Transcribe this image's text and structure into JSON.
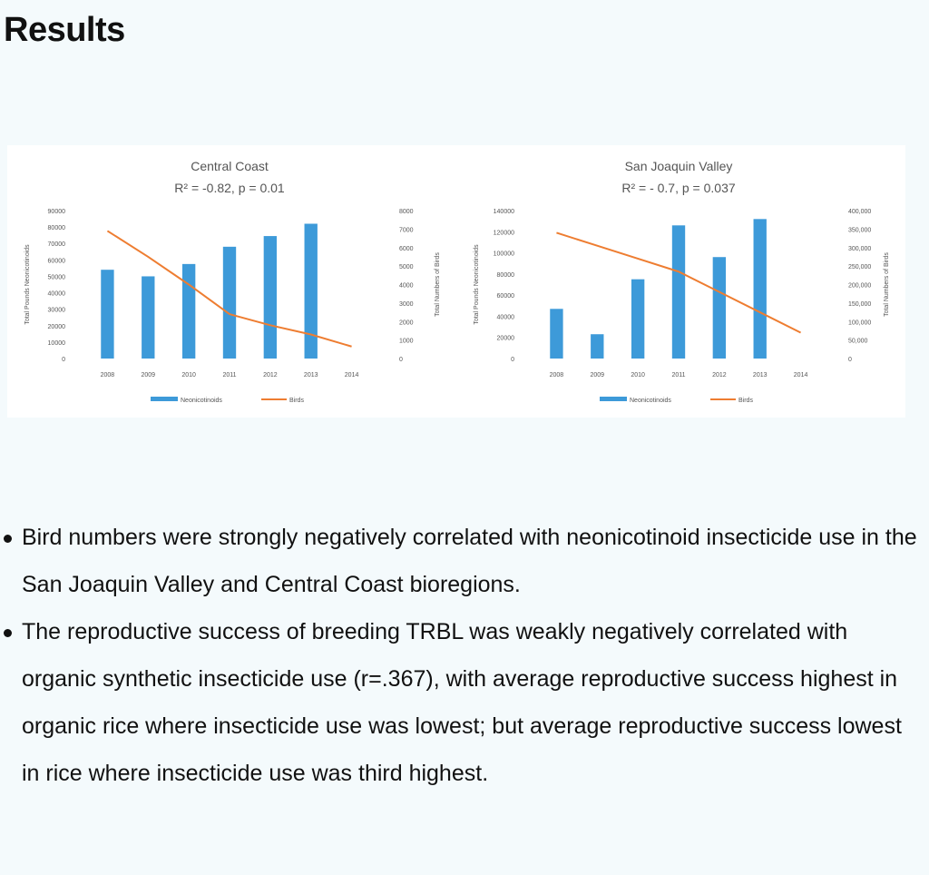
{
  "slide": {
    "title": "Results",
    "bullets": [
      "Bird numbers were strongly negatively correlated with neonicotinoid insecticide use in the San Joaquin Valley and Central Coast bioregions.",
      "The reproductive success of breeding TRBL was weakly negatively correlated with organic synthetic insecticide use (r=.367), with average reproductive success highest in organic rice where insecticide use was lowest; but average reproductive success lowest in rice where insecticide use was third highest."
    ]
  },
  "colors": {
    "bars": "#3d9ad9",
    "line": "#ee7d31",
    "axis_text": "#555555"
  },
  "chart_data": [
    {
      "type": "bar",
      "title": "Central Coast",
      "subtitle": "R² = -0.82, p = 0.01",
      "categories": [
        "2008",
        "2009",
        "2010",
        "2011",
        "2012",
        "2013",
        "2014"
      ],
      "series": [
        {
          "name": "Neonicotinoids",
          "type": "bar",
          "axis": "left",
          "values": [
            54000,
            50000,
            57500,
            68000,
            74500,
            82000,
            0
          ]
        },
        {
          "name": "Birds",
          "type": "line",
          "axis": "right",
          "values": [
            6900,
            5500,
            4000,
            2400,
            1800,
            1300,
            650
          ]
        }
      ],
      "ylabel": "Total Pounds Neonicotinoids",
      "y2label": "Total Numbers of Birds",
      "ylim": [
        0,
        90000
      ],
      "y2lim": [
        0,
        8000
      ],
      "yticks": [
        "0",
        "10000",
        "20000",
        "30000",
        "40000",
        "50000",
        "60000",
        "70000",
        "80000",
        "90000"
      ],
      "y2ticks": [
        "0",
        "1000",
        "2000",
        "3000",
        "4000",
        "5000",
        "6000",
        "7000",
        "8000"
      ],
      "legend": [
        "Neonicotinoids",
        "Birds"
      ]
    },
    {
      "type": "bar",
      "title": "San Joaquin Valley",
      "subtitle": "R² = - 0.7, p = 0.037",
      "categories": [
        "2008",
        "2009",
        "2010",
        "2011",
        "2012",
        "2013",
        "2014"
      ],
      "series": [
        {
          "name": "Neonicotinoids",
          "type": "bar",
          "axis": "left",
          "values": [
            47000,
            23000,
            75000,
            126000,
            96000,
            132000,
            0
          ]
        },
        {
          "name": "Birds",
          "type": "line",
          "axis": "right",
          "values": [
            340000,
            305000,
            270000,
            235000,
            180000,
            125000,
            70000
          ]
        }
      ],
      "ylabel": "Total Pounds Neonicotinoids",
      "y2label": "Total Numbers of Birds",
      "ylim": [
        0,
        140000
      ],
      "y2lim": [
        0,
        400000
      ],
      "yticks": [
        "0",
        "20000",
        "40000",
        "60000",
        "80000",
        "100000",
        "120000",
        "140000"
      ],
      "y2ticks": [
        "0",
        "50,000",
        "100,000",
        "150,000",
        "200,000",
        "250,000",
        "300,000",
        "350,000",
        "400,000"
      ],
      "legend": [
        "Neonicotinoids",
        "Birds"
      ]
    }
  ]
}
